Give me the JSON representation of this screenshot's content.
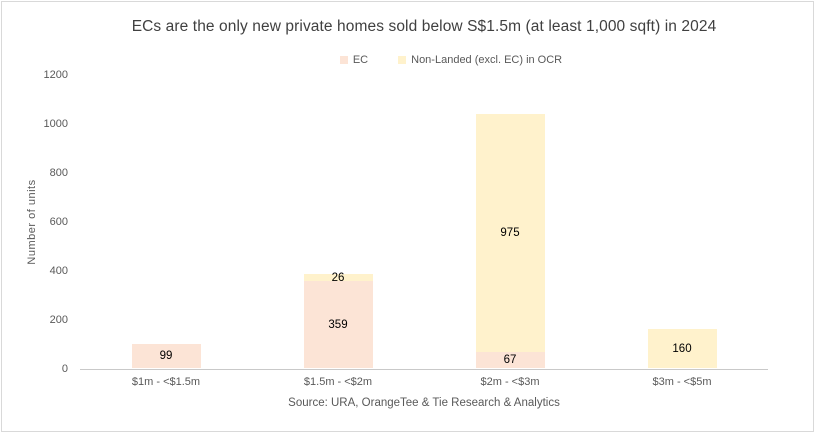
{
  "title": "ECs are the only new private homes sold below S$1.5m (at least 1,000 sqft) in 2024",
  "ylabel": "Number  of  units",
  "source": "Source: URA,  OrangeTee & Tie Research & Analytics",
  "legend": {
    "items": [
      {
        "key": "ec",
        "label": "EC",
        "color": "#fce4d6"
      },
      {
        "key": "non_landed",
        "label": "Non-Landed (excl. EC) in OCR",
        "color": "#fff2cc"
      }
    ]
  },
  "colors": {
    "ec_fill": "#fce4d6",
    "non_landed_fill": "#fff2cc",
    "title_text": "#404040",
    "axis_text": "#595959",
    "value_label_text": "#000000",
    "axis_line": "#c9c9c9",
    "frame_border": "#d9d9d9",
    "background": "#ffffff"
  },
  "chart_data": {
    "type": "bar",
    "stacked": true,
    "title": "ECs are the only new private homes sold below S$1.5m (at least 1,000 sqft) in 2024",
    "xlabel": "",
    "ylabel": "Number of units",
    "categories": [
      "$1m - <$1.5m",
      "$1.5m - <$2m",
      "$2m - <$3m",
      "$3m - <$5m"
    ],
    "series": [
      {
        "key": "ec",
        "name": "EC",
        "color": "#fce4d6",
        "values": [
          99,
          359,
          67,
          0
        ]
      },
      {
        "key": "non_landed",
        "name": "Non-Landed (excl. EC) in OCR",
        "color": "#fff2cc",
        "values": [
          0,
          26,
          975,
          160
        ]
      }
    ],
    "totals": [
      99,
      385,
      1042,
      160
    ],
    "ylim": [
      0,
      1200
    ],
    "yticks": [
      0,
      200,
      400,
      600,
      800,
      1000,
      1200
    ],
    "grid": false,
    "legend_position": "top-center",
    "data_labels": true,
    "source": "Source: URA,  OrangeTee & Tie Research & Analytics"
  }
}
